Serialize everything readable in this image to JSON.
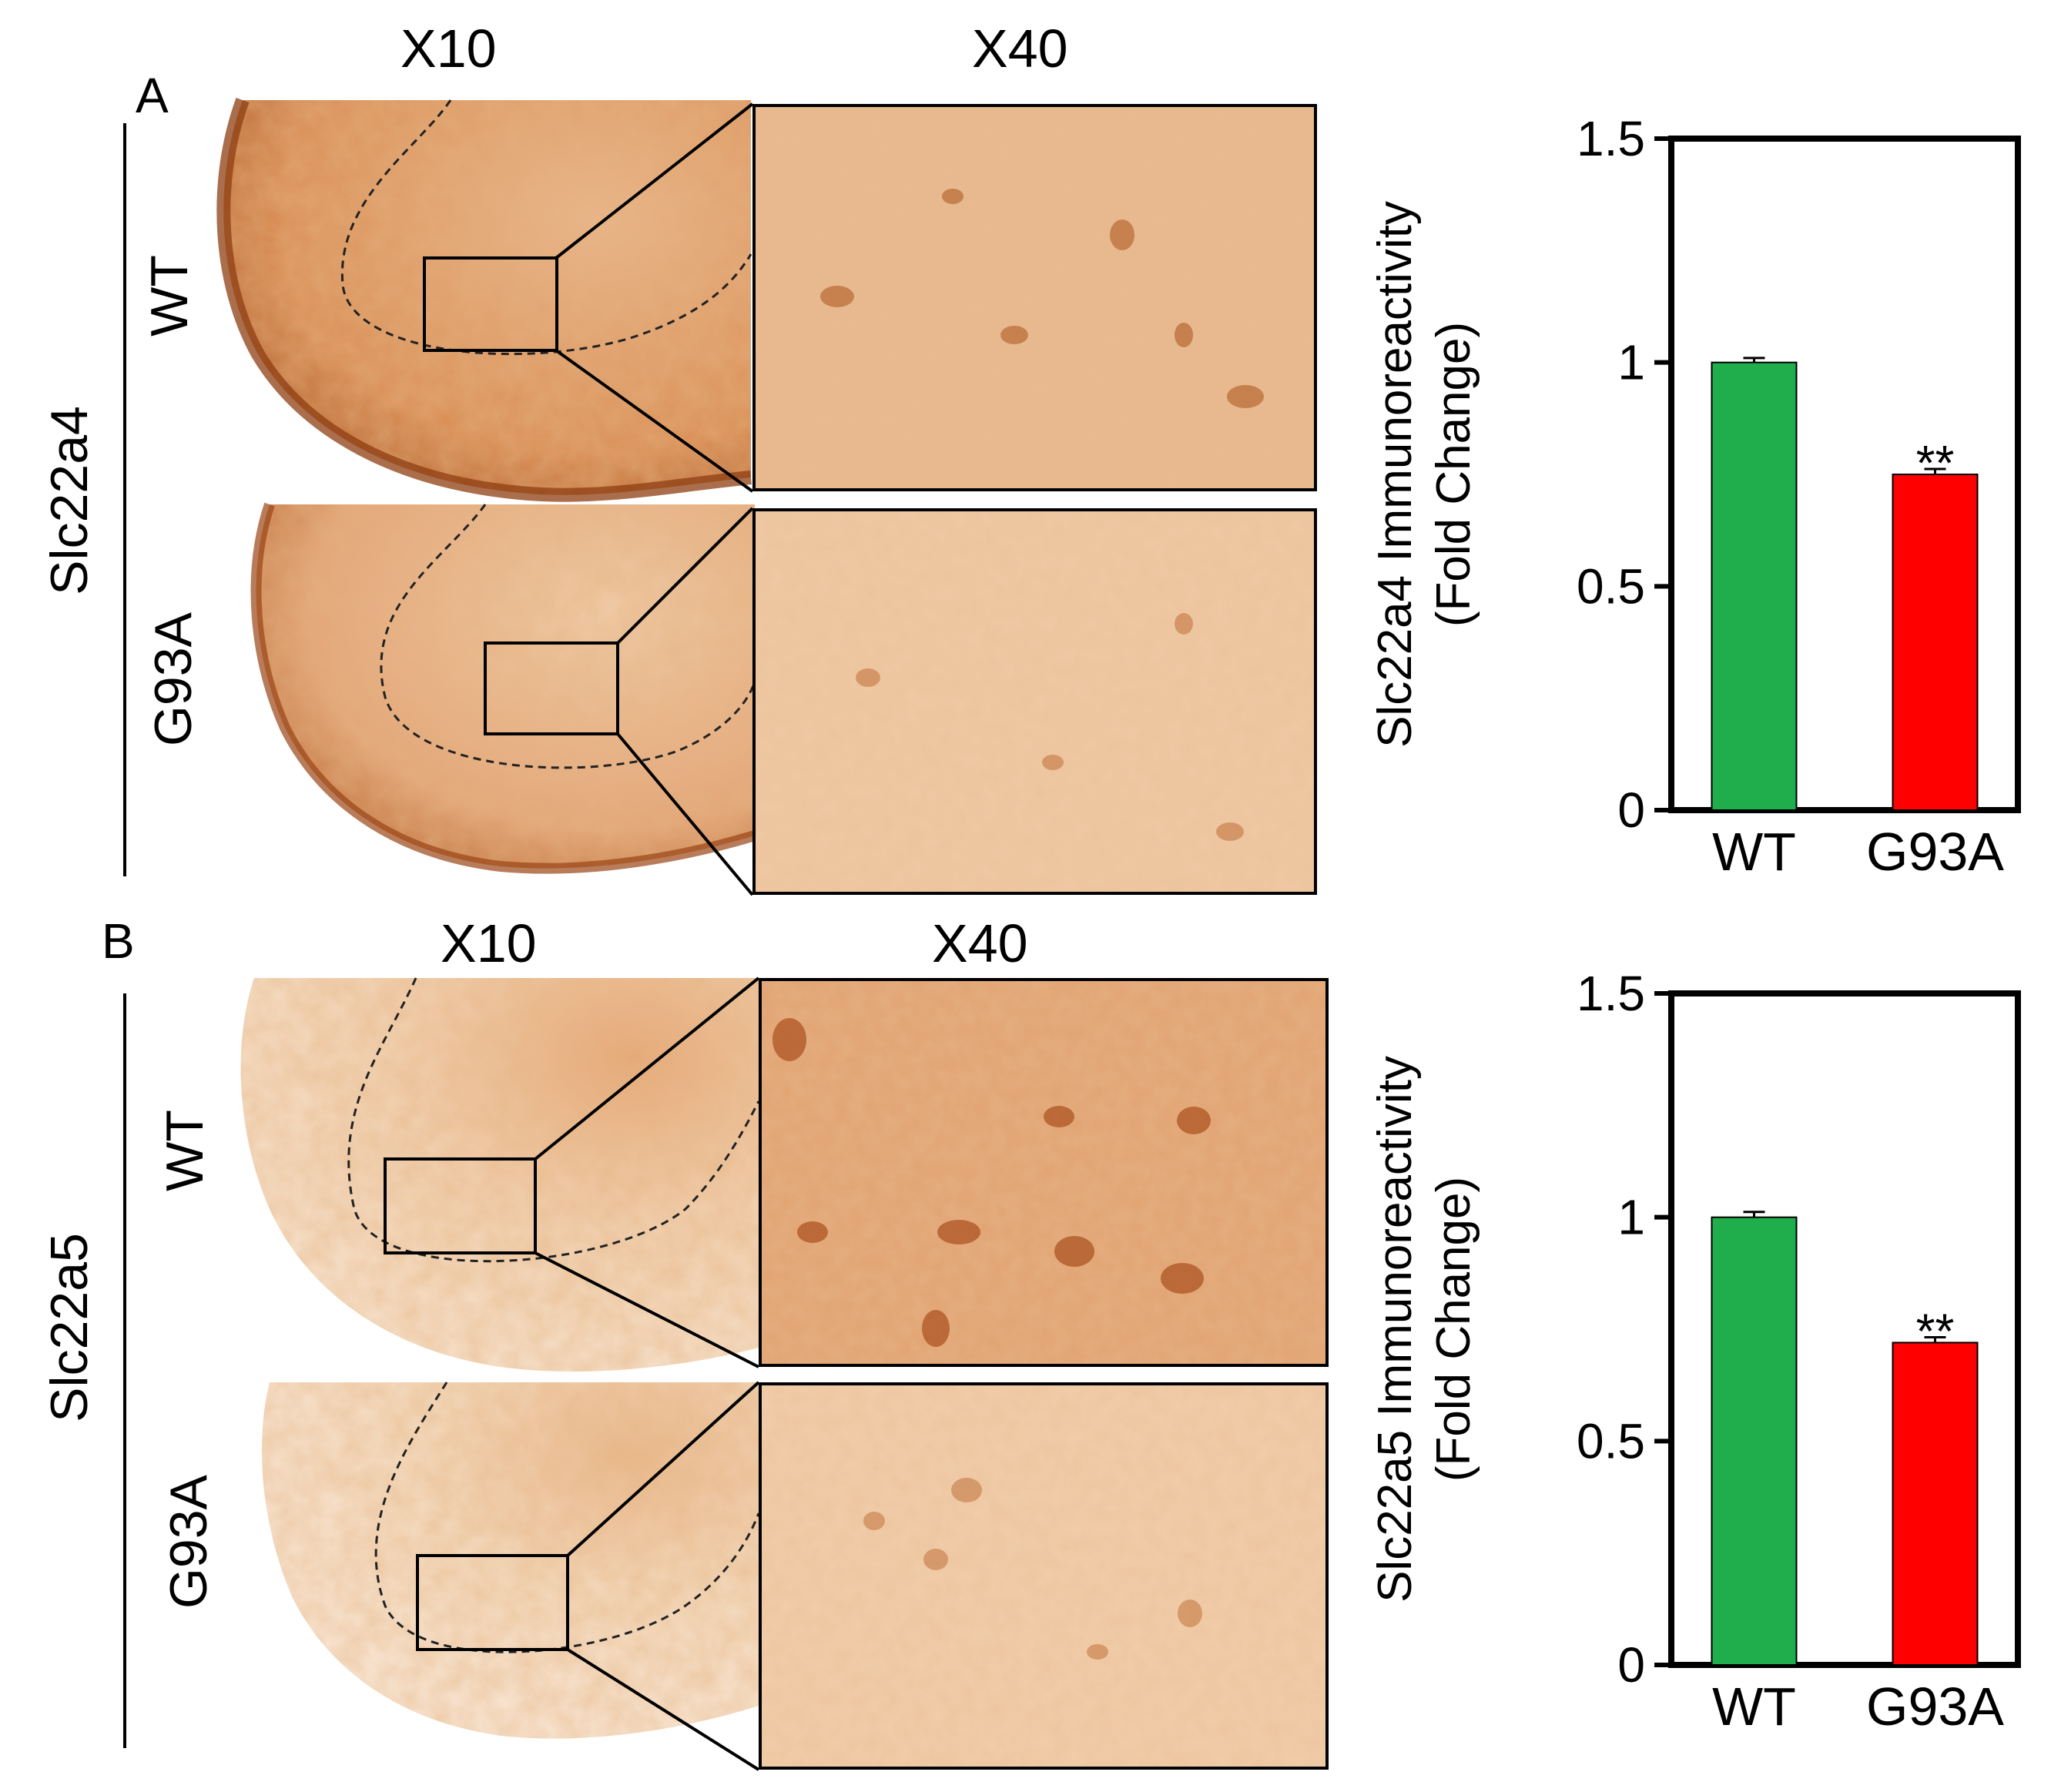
{
  "panels": [
    {
      "letter": "A",
      "gene": "Slc22a4",
      "magnification_low": "X10",
      "magnification_high": "X40",
      "genotypes": [
        "WT",
        "G93A"
      ]
    },
    {
      "letter": "B",
      "gene": "Slc22a5",
      "magnification_low": "X10",
      "magnification_high": "X40",
      "genotypes": [
        "WT",
        "G93A"
      ]
    }
  ],
  "colors": {
    "wt_bar": "#1fae4b",
    "g93a_bar": "#ff0000",
    "stain_dark": "#c8702f",
    "stain_light": "#f4d8b8"
  },
  "chart_data": [
    {
      "type": "bar",
      "categories": [
        "WT",
        "G93A"
      ],
      "values": [
        1.0,
        0.75
      ],
      "errors": [
        0.01,
        0.012
      ],
      "significance": [
        "",
        "**"
      ],
      "ylabel_line1": "Slc22a4 Immunoreactivity",
      "ylabel_line2": "(Fold Change)",
      "ylim": [
        0,
        1.5
      ],
      "yticks": [
        0,
        0.5,
        1,
        1.5
      ],
      "ytick_labels": [
        "0",
        "0.5",
        "1",
        "1.5"
      ]
    },
    {
      "type": "bar",
      "categories": [
        "WT",
        "G93A"
      ],
      "values": [
        1.0,
        0.72
      ],
      "errors": [
        0.012,
        0.012
      ],
      "significance": [
        "",
        "**"
      ],
      "ylabel_line1": "Slc22a5 Immunoreactivity",
      "ylabel_line2": "(Fold Change)",
      "ylim": [
        0,
        1.5
      ],
      "yticks": [
        0,
        0.5,
        1,
        1.5
      ],
      "ytick_labels": [
        "0",
        "0.5",
        "1",
        "1.5"
      ]
    }
  ]
}
